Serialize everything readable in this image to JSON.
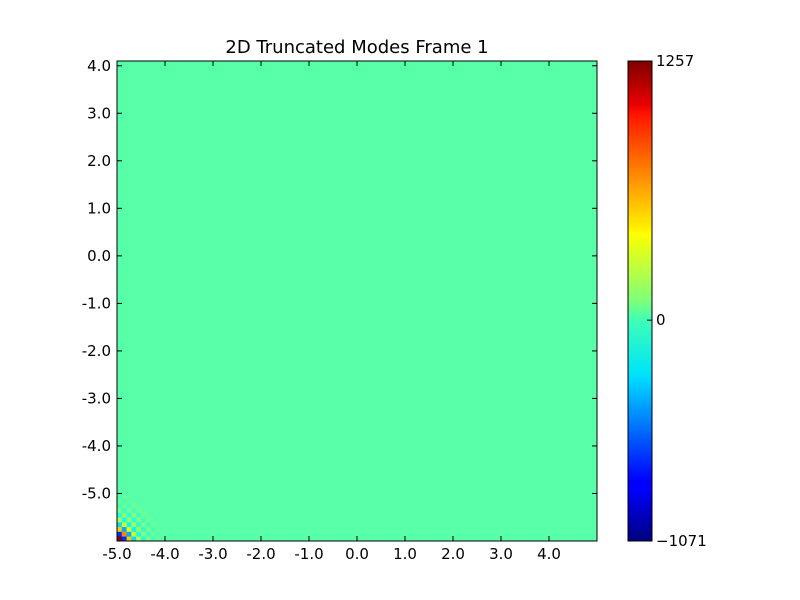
{
  "chart_data": {
    "type": "heatmap",
    "title": "2D Truncated Modes Frame 1",
    "xlabel": "",
    "ylabel": "",
    "xlim": [
      -5.0,
      5.0
    ],
    "ylim": [
      -6.0,
      4.1
    ],
    "x_ticks": [
      -5.0,
      -4.0,
      -3.0,
      -2.0,
      -1.0,
      0.0,
      1.0,
      2.0,
      3.0,
      4.0
    ],
    "x_tick_labels": [
      "-5.0",
      "-4.0",
      "-3.0",
      "-2.0",
      "-1.0",
      "0.0",
      "1.0",
      "2.0",
      "3.0",
      "4.0"
    ],
    "y_ticks": [
      4.0,
      3.0,
      2.0,
      1.0,
      0.0,
      -1.0,
      -2.0,
      -3.0,
      -4.0,
      -5.0
    ],
    "y_tick_labels": [
      "4.0",
      "3.0",
      "2.0",
      "1.0",
      "0.0",
      "-1.0",
      "-2.0",
      "-3.0",
      "-4.0",
      "-5.0"
    ],
    "colormap": "jet",
    "background_value": 0,
    "colorbar": {
      "min": -1071,
      "max": 1257,
      "ticks": [
        1257,
        0,
        -1071
      ],
      "tick_labels": [
        "1257",
        "0",
        "−1071"
      ]
    },
    "nonzero_region": {
      "description_corner": "bottom-left",
      "x_from": -5.0,
      "x_to": -4.1,
      "y_from": -6.0,
      "y_to": -5.0,
      "cell_size": 0.1,
      "pattern": "checkerboard",
      "peak_values_near_corner": [
        1257,
        -1071
      ]
    },
    "grid": false,
    "legend": "none"
  }
}
